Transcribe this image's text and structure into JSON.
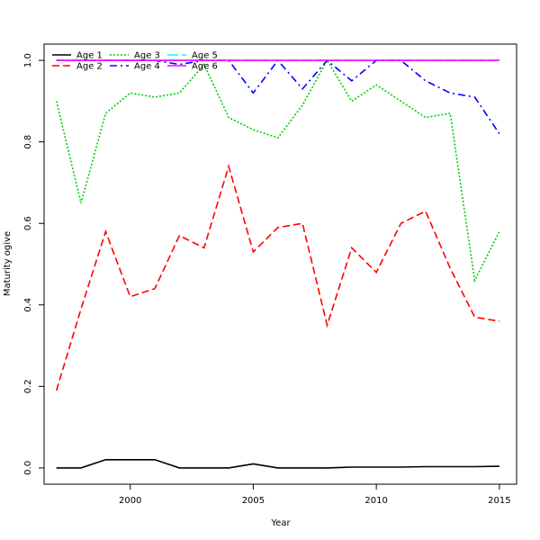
{
  "chart_data": {
    "type": "line",
    "title": "",
    "xlabel": "Year",
    "ylabel": "Maturity ogive",
    "xlim": [
      1996.5,
      2015.7
    ],
    "ylim": [
      -0.04,
      1.04
    ],
    "x": [
      1997,
      1998,
      1999,
      2000,
      2001,
      2002,
      2003,
      2004,
      2005,
      2006,
      2007,
      2008,
      2009,
      2010,
      2011,
      2012,
      2013,
      2014,
      2015
    ],
    "x_ticks": [
      2000,
      2005,
      2010,
      2015
    ],
    "x_tick_labels": [
      "2000",
      "2005",
      "2010",
      "2015"
    ],
    "y_ticks": [
      0.0,
      0.2,
      0.4,
      0.6,
      0.8,
      1.0
    ],
    "y_tick_labels": [
      "0.0",
      "0.2",
      "0.4",
      "0.6",
      "0.8",
      "1.0"
    ],
    "grid": false,
    "legend_position": "top-left",
    "series": [
      {
        "name": "Age 1",
        "color": "#000000",
        "dash": "",
        "values": [
          0.0,
          0.0,
          0.02,
          0.02,
          0.02,
          0.0,
          0.0,
          0.0,
          0.01,
          0.0,
          0.0,
          0.0,
          0.002,
          0.002,
          0.002,
          0.003,
          0.003,
          0.003,
          0.004
        ]
      },
      {
        "name": "Age 2",
        "color": "#ff0000",
        "dash": "8 4",
        "values": [
          0.19,
          0.39,
          0.58,
          0.42,
          0.44,
          0.57,
          0.54,
          0.74,
          0.53,
          0.59,
          0.6,
          0.35,
          0.54,
          0.48,
          0.6,
          0.63,
          0.49,
          0.37,
          0.36
        ]
      },
      {
        "name": "Age 3",
        "color": "#00cd00",
        "dash": "2 2",
        "values": [
          0.9,
          0.65,
          0.87,
          0.92,
          0.91,
          0.92,
          0.99,
          0.86,
          0.83,
          0.81,
          0.89,
          1.0,
          0.9,
          0.94,
          0.9,
          0.86,
          0.87,
          0.46,
          0.58
        ]
      },
      {
        "name": "Age 4",
        "color": "#0000ff",
        "dash": "8 4 2 4",
        "values": [
          1.0,
          1.0,
          1.0,
          1.0,
          1.0,
          0.99,
          1.0,
          1.0,
          0.92,
          1.0,
          0.93,
          1.0,
          0.95,
          1.0,
          1.0,
          0.95,
          0.92,
          0.91,
          0.82
        ]
      },
      {
        "name": "Age 5",
        "color": "#00ffff",
        "dash": "12 4",
        "values": [
          1.0,
          1.0,
          1.0,
          1.0,
          1.0,
          1.0,
          1.0,
          1.0,
          1.0,
          1.0,
          1.0,
          1.0,
          1.0,
          1.0,
          1.0,
          1.0,
          1.0,
          1.0,
          1.0
        ]
      },
      {
        "name": "Age 6",
        "color": "#ff00ff",
        "dash": "",
        "values": [
          1.0,
          1.0,
          1.0,
          1.0,
          1.0,
          1.0,
          1.0,
          1.0,
          1.0,
          1.0,
          1.0,
          1.0,
          1.0,
          1.0,
          1.0,
          1.0,
          1.0,
          1.0,
          1.0
        ]
      }
    ]
  }
}
